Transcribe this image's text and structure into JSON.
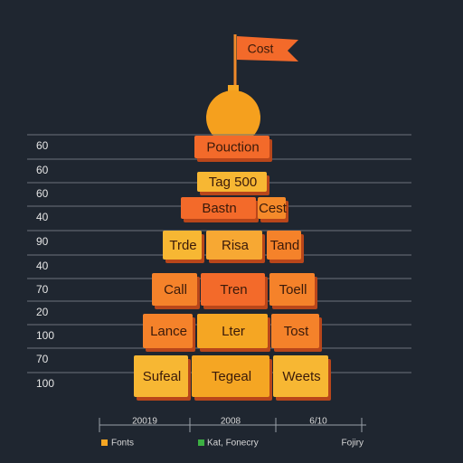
{
  "flag": {
    "label": "Cost"
  },
  "left_labels": [
    "60",
    "60",
    "60",
    "40",
    "90",
    "40",
    "70",
    "20",
    "100",
    "70",
    "100"
  ],
  "rows": [
    [
      "Pouction"
    ],
    [
      "Tag 500"
    ],
    [
      "Bastn",
      "Cest"
    ],
    [
      "Trde",
      "Risa",
      "Tand"
    ],
    [
      "Call",
      "Tren",
      "Toell"
    ],
    [
      "Lance",
      "Lter",
      "Tost"
    ],
    [
      "Sufeal",
      "Tegeal",
      "Weets"
    ]
  ],
  "bottom_labels": [
    "20019",
    "2008",
    "6/10"
  ],
  "legend": [
    "Fonts",
    "Kat, Fonecry",
    "Fojiry"
  ]
}
